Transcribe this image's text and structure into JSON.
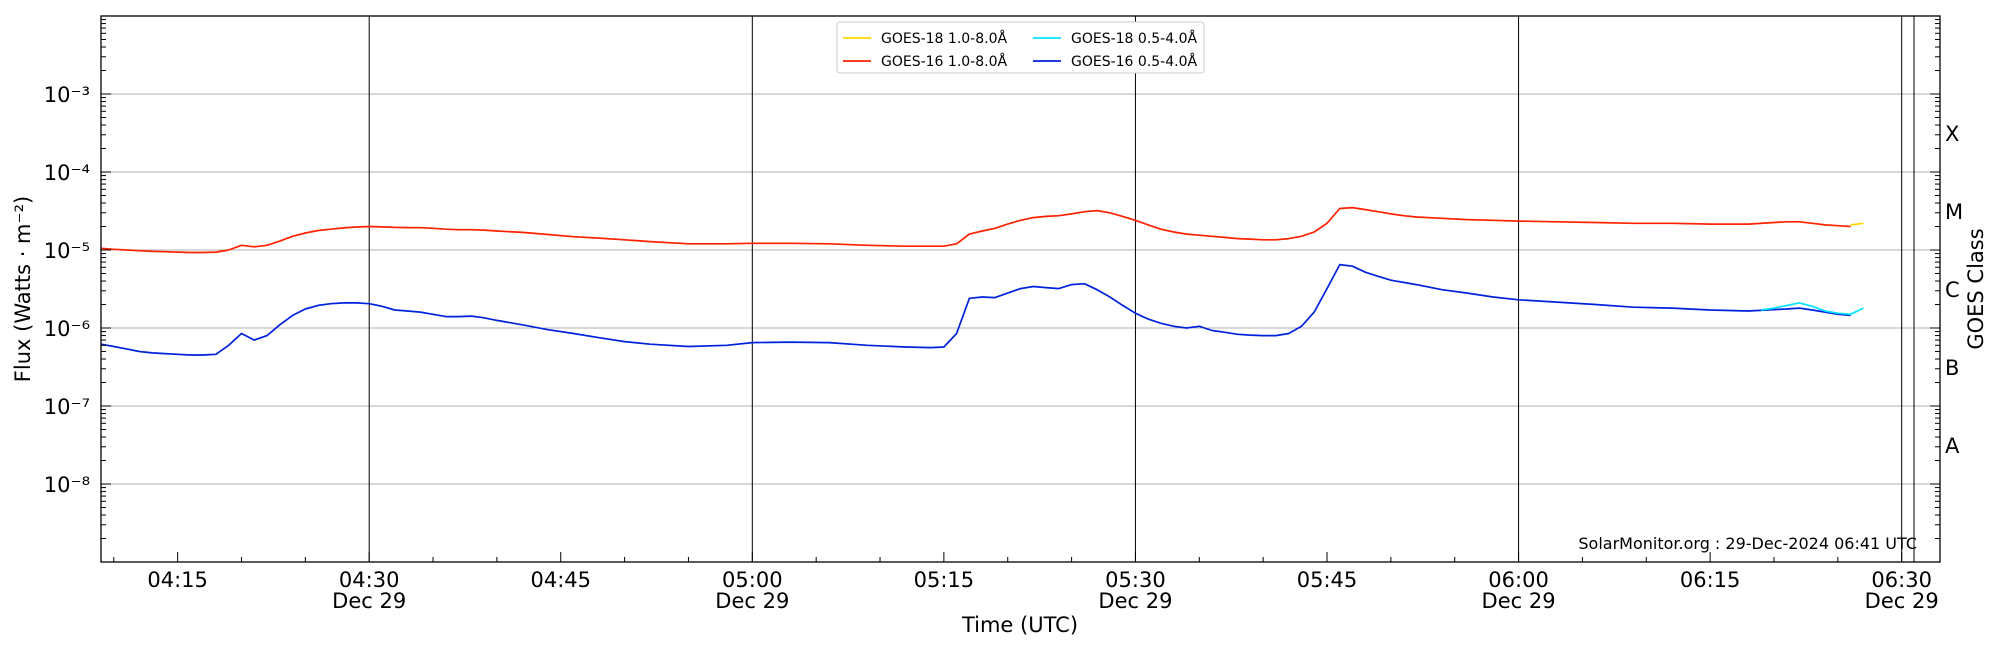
{
  "chart_data": {
    "type": "line",
    "title": "",
    "xlabel": "Time (UTC)",
    "ylabel": "Flux (Watts · m⁻²)",
    "y2label": "GOES Class",
    "yscale": "log",
    "xlim": [
      "04:09",
      "06:33"
    ],
    "ylim": [
      1e-09,
      0.01
    ],
    "grid": "horizontal",
    "legend_position": "top-center",
    "credit": "SolarMonitor.org : 29-Dec-2024 06:41 UTC",
    "x_ticks": [
      {
        "time": "04:15",
        "label": "04:15",
        "date": ""
      },
      {
        "time": "04:30",
        "label": "04:30",
        "date": "Dec 29"
      },
      {
        "time": "04:45",
        "label": "04:45",
        "date": ""
      },
      {
        "time": "05:00",
        "label": "05:00",
        "date": "Dec 29"
      },
      {
        "time": "05:15",
        "label": "05:15",
        "date": ""
      },
      {
        "time": "05:30",
        "label": "05:30",
        "date": "Dec 29"
      },
      {
        "time": "05:45",
        "label": "05:45",
        "date": ""
      },
      {
        "time": "06:00",
        "label": "06:00",
        "date": "Dec 29"
      },
      {
        "time": "06:15",
        "label": "06:15",
        "date": ""
      },
      {
        "time": "06:30",
        "label": "06:30",
        "date": "Dec 29"
      }
    ],
    "day_lines": [
      "04:30",
      "05:00",
      "05:30",
      "06:00",
      "06:30"
    ],
    "y_ticks": [
      {
        "exp": -8,
        "label": "10⁻⁸"
      },
      {
        "exp": -7,
        "label": "10⁻⁷"
      },
      {
        "exp": -6,
        "label": "10⁻⁶"
      },
      {
        "exp": -5,
        "label": "10⁻⁵"
      },
      {
        "exp": -4,
        "label": "10⁻⁴"
      },
      {
        "exp": -3,
        "label": "10⁻³"
      }
    ],
    "goes_classes": [
      {
        "label": "A",
        "exp": -7.5
      },
      {
        "label": "B",
        "exp": -6.5
      },
      {
        "label": "C",
        "exp": -5.5
      },
      {
        "label": "M",
        "exp": -4.5
      },
      {
        "label": "X",
        "exp": -3.5
      }
    ],
    "series": [
      {
        "name": "GOES-18 1.0-8.0Å",
        "color": "#ffd700",
        "x": [
          "06:26",
          "06:27"
        ],
        "y": [
          2.1e-05,
          2.2e-05
        ]
      },
      {
        "name": "GOES-18 0.5-4.0Å",
        "color": "#00e5ff",
        "x": [
          "06:19",
          "06:20",
          "06:21",
          "06:22",
          "06:23",
          "06:24",
          "06:25",
          "06:26",
          "06:27"
        ],
        "y": [
          1.7e-06,
          1.8e-06,
          1.95e-06,
          2.1e-06,
          1.9e-06,
          1.65e-06,
          1.55e-06,
          1.5e-06,
          1.8e-06
        ]
      },
      {
        "name": "GOES-16 1.0-8.0Å",
        "color": "#ff2200",
        "x": [
          "04:09",
          "04:10",
          "04:11",
          "04:12",
          "04:13",
          "04:14",
          "04:15",
          "04:16",
          "04:17",
          "04:18",
          "04:19",
          "04:20",
          "04:21",
          "04:22",
          "04:23",
          "04:24",
          "04:25",
          "04:26",
          "04:27",
          "04:28",
          "04:29",
          "04:30",
          "04:31",
          "04:32",
          "04:33",
          "04:34",
          "04:35",
          "04:36",
          "04:37",
          "04:38",
          "04:39",
          "04:40",
          "04:42",
          "04:44",
          "04:46",
          "04:48",
          "04:50",
          "04:52",
          "04:55",
          "04:58",
          "05:00",
          "05:03",
          "05:06",
          "05:09",
          "05:12",
          "05:15",
          "05:16",
          "05:17",
          "05:18",
          "05:19",
          "05:20",
          "05:21",
          "05:22",
          "05:23",
          "05:24",
          "05:25",
          "05:26",
          "05:27",
          "05:28",
          "05:29",
          "05:30",
          "05:31",
          "05:32",
          "05:33",
          "05:34",
          "05:35",
          "05:36",
          "05:37",
          "05:38",
          "05:39",
          "05:40",
          "05:41",
          "05:42",
          "05:43",
          "05:44",
          "05:45",
          "05:46",
          "05:47",
          "05:48",
          "05:49",
          "05:50",
          "05:51",
          "05:52",
          "05:54",
          "05:56",
          "05:58",
          "06:00",
          "06:03",
          "06:06",
          "06:09",
          "06:12",
          "06:15",
          "06:18",
          "06:20",
          "06:21",
          "06:22",
          "06:23",
          "06:24",
          "06:25",
          "06:26"
        ],
        "y": [
          1.05e-05,
          1.02e-05,
          1e-05,
          9.8e-06,
          9.6e-06,
          9.5e-06,
          9.4e-06,
          9.3e-06,
          9.3e-06,
          9.4e-06,
          1e-05,
          1.15e-05,
          1.1e-05,
          1.15e-05,
          1.3e-05,
          1.5e-05,
          1.65e-05,
          1.78e-05,
          1.85e-05,
          1.92e-05,
          1.97e-05,
          2e-05,
          1.98e-05,
          1.95e-05,
          1.94e-05,
          1.93e-05,
          1.9e-05,
          1.85e-05,
          1.82e-05,
          1.82e-05,
          1.8e-05,
          1.75e-05,
          1.68e-05,
          1.58e-05,
          1.48e-05,
          1.42e-05,
          1.35e-05,
          1.28e-05,
          1.2e-05,
          1.2e-05,
          1.22e-05,
          1.22e-05,
          1.2e-05,
          1.15e-05,
          1.12e-05,
          1.12e-05,
          1.2e-05,
          1.6e-05,
          1.75e-05,
          1.9e-05,
          2.15e-05,
          2.4e-05,
          2.6e-05,
          2.7e-05,
          2.75e-05,
          2.9e-05,
          3.1e-05,
          3.2e-05,
          3e-05,
          2.7e-05,
          2.4e-05,
          2.1e-05,
          1.85e-05,
          1.7e-05,
          1.6e-05,
          1.55e-05,
          1.5e-05,
          1.45e-05,
          1.4e-05,
          1.38e-05,
          1.35e-05,
          1.35e-05,
          1.4e-05,
          1.5e-05,
          1.7e-05,
          2.2e-05,
          3.4e-05,
          3.5e-05,
          3.3e-05,
          3.1e-05,
          2.9e-05,
          2.75e-05,
          2.65e-05,
          2.55e-05,
          2.45e-05,
          2.4e-05,
          2.35e-05,
          2.3e-05,
          2.25e-05,
          2.2e-05,
          2.2e-05,
          2.15e-05,
          2.15e-05,
          2.25e-05,
          2.3e-05,
          2.3e-05,
          2.2e-05,
          2.1e-05,
          2.05e-05,
          2e-05
        ]
      },
      {
        "name": "GOES-16 0.5-4.0Å",
        "color": "#0022dd",
        "x": [
          "04:09",
          "04:10",
          "04:11",
          "04:12",
          "04:13",
          "04:14",
          "04:15",
          "04:16",
          "04:17",
          "04:18",
          "04:19",
          "04:20",
          "04:21",
          "04:22",
          "04:23",
          "04:24",
          "04:25",
          "04:26",
          "04:27",
          "04:28",
          "04:29",
          "04:30",
          "04:31",
          "04:32",
          "04:33",
          "04:34",
          "04:35",
          "04:36",
          "04:37",
          "04:38",
          "04:39",
          "04:40",
          "04:42",
          "04:44",
          "04:46",
          "04:48",
          "04:50",
          "04:52",
          "04:55",
          "04:58",
          "05:00",
          "05:03",
          "05:06",
          "05:09",
          "05:12",
          "05:14",
          "05:15",
          "05:16",
          "05:17",
          "05:18",
          "05:19",
          "05:20",
          "05:21",
          "05:22",
          "05:23",
          "05:24",
          "05:25",
          "05:26",
          "05:27",
          "05:28",
          "05:29",
          "05:30",
          "05:31",
          "05:32",
          "05:33",
          "05:34",
          "05:35",
          "05:36",
          "05:37",
          "05:38",
          "05:39",
          "05:40",
          "05:41",
          "05:42",
          "05:43",
          "05:44",
          "05:45",
          "05:46",
          "05:47",
          "05:48",
          "05:49",
          "05:50",
          "05:52",
          "05:54",
          "05:56",
          "05:58",
          "06:00",
          "06:03",
          "06:06",
          "06:09",
          "06:12",
          "06:15",
          "06:18",
          "06:20",
          "06:21",
          "06:22",
          "06:23",
          "06:24",
          "06:25",
          "06:26"
        ],
        "y": [
          6.2e-07,
          5.8e-07,
          5.4e-07,
          5e-07,
          4.8e-07,
          4.7e-07,
          4.6e-07,
          4.5e-07,
          4.5e-07,
          4.6e-07,
          6e-07,
          8.5e-07,
          7e-07,
          8e-07,
          1.1e-06,
          1.45e-06,
          1.75e-06,
          1.95e-06,
          2.05e-06,
          2.1e-06,
          2.1e-06,
          2.05e-06,
          1.9e-06,
          1.7e-06,
          1.65e-06,
          1.6e-06,
          1.5e-06,
          1.4e-06,
          1.4e-06,
          1.42e-06,
          1.35e-06,
          1.25e-06,
          1.1e-06,
          9.5e-07,
          8.5e-07,
          7.5e-07,
          6.7e-07,
          6.2e-07,
          5.8e-07,
          6e-07,
          6.5e-07,
          6.6e-07,
          6.5e-07,
          6e-07,
          5.7e-07,
          5.6e-07,
          5.7e-07,
          8.5e-07,
          2.4e-06,
          2.5e-06,
          2.45e-06,
          2.8e-06,
          3.2e-06,
          3.4e-06,
          3.3e-06,
          3.2e-06,
          3.6e-06,
          3.7e-06,
          3.1e-06,
          2.5e-06,
          1.95e-06,
          1.55e-06,
          1.3e-06,
          1.15e-06,
          1.05e-06,
          1e-06,
          1.05e-06,
          9.3e-07,
          8.8e-07,
          8.3e-07,
          8.1e-07,
          8e-07,
          8e-07,
          8.5e-07,
          1.05e-06,
          1.6e-06,
          3.2e-06,
          6.5e-06,
          6.2e-06,
          5.2e-06,
          4.6e-06,
          4.1e-06,
          3.6e-06,
          3.1e-06,
          2.8e-06,
          2.5e-06,
          2.3e-06,
          2.15e-06,
          2e-06,
          1.85e-06,
          1.8e-06,
          1.7e-06,
          1.65e-06,
          1.72e-06,
          1.75e-06,
          1.8e-06,
          1.7e-06,
          1.6e-06,
          1.5e-06,
          1.45e-06
        ]
      }
    ]
  }
}
